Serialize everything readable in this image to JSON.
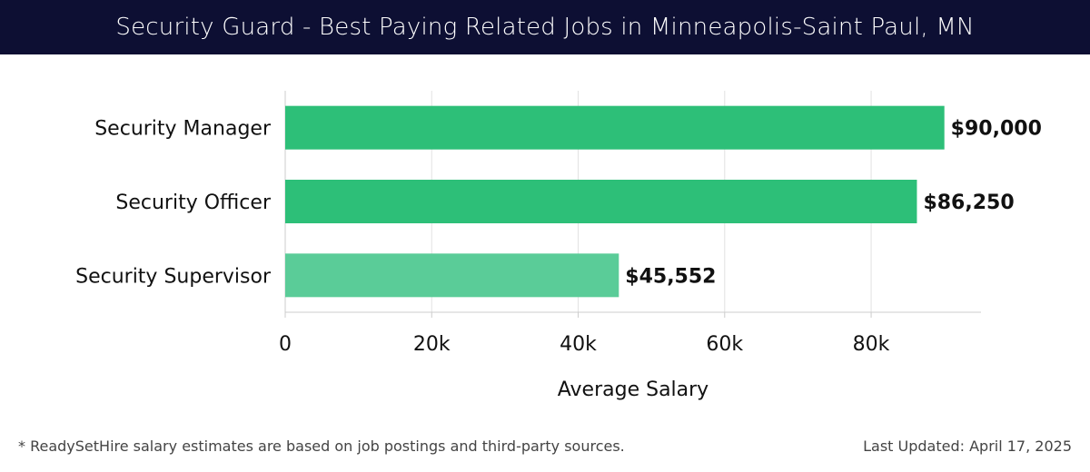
{
  "header": {
    "title": "Security Guard - Best Paying Related Jobs in Minneapolis-Saint Paul, MN"
  },
  "chart_data": {
    "type": "bar",
    "orientation": "horizontal",
    "categories": [
      "Security Manager",
      "Security Officer",
      "Security Supervisor"
    ],
    "values": [
      90000,
      86250,
      45552
    ],
    "value_labels": [
      "$90,000",
      "$86,250",
      "$45,552"
    ],
    "bar_colors": [
      "#2dbf78",
      "#2dbf78",
      "#5acc98"
    ],
    "xlabel": "Average Salary",
    "ylabel": "",
    "xlim": [
      0,
      95000
    ],
    "x_ticks": [
      0,
      20000,
      40000,
      60000,
      80000
    ],
    "x_tick_labels": [
      "0",
      "20k",
      "40k",
      "60k",
      "80k"
    ],
    "grid": true
  },
  "footer": {
    "note": "* ReadySetHire salary estimates are based on job postings and third-party sources.",
    "updated": "Last Updated: April 17, 2025"
  }
}
